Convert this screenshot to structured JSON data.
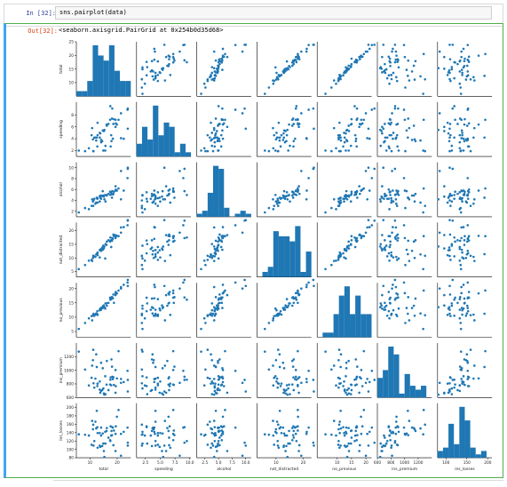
{
  "cell_in": {
    "prompt": "In [32]:",
    "code": "sns.pairplot(data)"
  },
  "cell_out": {
    "prompt": "Out[32]:",
    "repr": "<seaborn.axisgrid.PairGrid at 0x254b0d35d68>"
  },
  "colors": {
    "marker": "#1f77b4",
    "in_prompt": "#303f9f",
    "out_prompt": "#d84315",
    "cell_border": "#4fae4f",
    "selection_bar": "#42a5f5"
  },
  "chart_data": {
    "type": "scatter",
    "variables": [
      "total",
      "speeding",
      "alcohol",
      "not_distracted",
      "no_previous",
      "ins_premium",
      "ins_losses"
    ],
    "ranges": {
      "total": [
        5,
        25
      ],
      "speeding": [
        1.0,
        10.2
      ],
      "alcohol": [
        1.0,
        11.0
      ],
      "not_distracted": [
        3,
        23
      ],
      "no_previous": [
        3,
        22
      ],
      "ins_premium": [
        600,
        1400
      ],
      "ins_losses": [
        80,
        210
      ]
    },
    "diag_ranges": {
      "total": [
        5,
        25
      ],
      "speeding": [
        1.0,
        10.2
      ],
      "alcohol": [
        1.0,
        11.0
      ],
      "not_distracted": [
        3,
        23
      ],
      "no_previous": [
        3,
        22
      ],
      "ins_premium": [
        600,
        1400
      ],
      "ins_losses": [
        80,
        210
      ]
    },
    "ticks": {
      "total": [
        5,
        10,
        15,
        20,
        25
      ],
      "speeding": [
        2,
        4,
        6,
        8,
        10
      ],
      "alcohol": [
        2,
        4,
        6,
        8,
        10
      ],
      "not_distracted": [
        5,
        10,
        15,
        20
      ],
      "no_previous": [
        5,
        10,
        15,
        20
      ],
      "ins_premium": [
        600,
        800,
        1000,
        1200
      ],
      "ins_losses": [
        80,
        100,
        120,
        140,
        160,
        180,
        200
      ]
    },
    "x_tick_labels": {
      "total": [
        "10",
        "20"
      ],
      "speeding": [
        "2.5",
        "5.0",
        "7.5",
        "10.0"
      ],
      "alcohol": [
        "2.5",
        "5.0",
        "7.5",
        "10.0"
      ],
      "not_distracted": [
        "10",
        "20"
      ],
      "no_previous": [
        "10",
        "15",
        "20"
      ],
      "ins_premium": [
        "600",
        "800",
        "1000",
        "1200"
      ],
      "ins_losses": [
        "100",
        "150",
        "200"
      ]
    },
    "x_tick_values": {
      "total": [
        10,
        20
      ],
      "speeding": [
        2.5,
        5.0,
        7.5,
        10.0
      ],
      "alcohol": [
        2.5,
        5.0,
        7.5,
        10.0
      ],
      "not_distracted": [
        10,
        20
      ],
      "no_previous": [
        10,
        15,
        20
      ],
      "ins_premium": [
        600,
        800,
        1000,
        1200
      ],
      "ins_losses": [
        100,
        150,
        200
      ]
    },
    "y_tick_labels": {
      "total": [
        "10",
        "15",
        "20",
        "25"
      ],
      "speeding": [
        "2",
        "4",
        "6",
        "8"
      ],
      "alcohol": [
        "2",
        "4",
        "6",
        "8",
        "10"
      ],
      "not_distracted": [
        "5",
        "10",
        "15",
        "20"
      ],
      "no_previous": [
        "5",
        "10",
        "15",
        "20"
      ],
      "ins_premium": [
        "600",
        "800",
        "1000",
        "1200"
      ],
      "ins_losses": [
        "80",
        "100",
        "120",
        "140",
        "160",
        "180",
        "200"
      ]
    },
    "y_tick_values": {
      "total": [
        10,
        15,
        20,
        25
      ],
      "speeding": [
        2,
        4,
        6,
        8
      ],
      "alcohol": [
        2,
        4,
        6,
        8,
        10
      ],
      "not_distracted": [
        5,
        10,
        15,
        20
      ],
      "no_previous": [
        5,
        10,
        15,
        20
      ],
      "ins_premium": [
        600,
        800,
        1000,
        1200
      ],
      "ins_losses": [
        80,
        100,
        120,
        140,
        160,
        180,
        200
      ]
    },
    "records": [
      [
        18.8,
        7.3,
        5.6,
        18.0,
        15.0,
        785,
        145
      ],
      [
        18.1,
        7.4,
        4.5,
        16.3,
        17.0,
        1053,
        134
      ],
      [
        18.6,
        6.5,
        5.2,
        18.6,
        17.9,
        899,
        110
      ],
      [
        22.4,
        4.0,
        5.8,
        21.3,
        21.3,
        827,
        142
      ],
      [
        12.0,
        4.2,
        3.4,
        10.4,
        10.9,
        878,
        166
      ],
      [
        13.6,
        5.0,
        3.8,
        10.2,
        12.4,
        835,
        139
      ],
      [
        10.8,
        5.8,
        4.2,
        8.9,
        8.9,
        1068,
        168
      ],
      [
        16.2,
        6.2,
        4.9,
        16.0,
        14.0,
        1137,
        151
      ],
      [
        5.9,
        2.0,
        1.8,
        5.9,
        5.9,
        1274,
        136
      ],
      [
        17.9,
        3.6,
        5.2,
        16.5,
        16.5,
        1160,
        144
      ],
      [
        15.6,
        2.0,
        5.0,
        9.8,
        13.0,
        913,
        142
      ],
      [
        17.5,
        9.5,
        5.0,
        17.5,
        16.1,
        861,
        120
      ],
      [
        15.3,
        5.5,
        4.2,
        14.2,
        13.5,
        642,
        82
      ],
      [
        12.8,
        4.6,
        4.4,
        12.0,
        10.9,
        804,
        139
      ],
      [
        14.5,
        3.6,
        4.8,
        13.8,
        13.5,
        710,
        108
      ],
      [
        15.7,
        2.8,
        3.8,
        15.1,
        14.8,
        649,
        114
      ],
      [
        17.8,
        4.6,
        5.5,
        14.0,
        16.3,
        780,
        133
      ],
      [
        21.4,
        4.1,
        4.2,
        21.2,
        20.5,
        873,
        137
      ],
      [
        20.5,
        7.2,
        6.2,
        18.0,
        19.3,
        1281,
        194
      ],
      [
        15.1,
        5.3,
        4.7,
        13.5,
        14.1,
        661,
        96
      ],
      [
        12.5,
        4.2,
        4.5,
        11.4,
        11.2,
        1048,
        192
      ],
      [
        8.2,
        1.9,
        2.6,
        7.4,
        8.0,
        1011,
        135
      ],
      [
        14.1,
        3.8,
        4.9,
        12.6,
        13.2,
        1110,
        152
      ],
      [
        9.6,
        2.4,
        2.4,
        9.0,
        9.6,
        777,
        133
      ],
      [
        17.6,
        2.7,
        5.5,
        16.4,
        16.8,
        896,
        155
      ],
      [
        16.1,
        6.4,
        5.0,
        14.8,
        14.8,
        790,
        144
      ],
      [
        21.4,
        8.3,
        9.4,
        19.3,
        20.0,
        816,
        85
      ],
      [
        14.9,
        2.0,
        4.9,
        14.5,
        14.0,
        733,
        114
      ],
      [
        14.7,
        5.4,
        5.7,
        13.0,
        13.2,
        1030,
        138
      ],
      [
        11.6,
        4.2,
        4.3,
        10.6,
        10.5,
        746,
        120
      ],
      [
        11.2,
        1.9,
        3.0,
        10.8,
        10.7,
        1301,
        159
      ],
      [
        18.4,
        4.0,
        5.1,
        17.0,
        16.6,
        870,
        152
      ],
      [
        12.3,
        3.7,
        3.6,
        11.3,
        11.3,
        1234,
        150
      ],
      [
        16.8,
        6.5,
        5.2,
        16.5,
        15.0,
        709,
        128
      ],
      [
        23.9,
        5.7,
        10.0,
        23.9,
        20.9,
        688,
        109
      ],
      [
        14.1,
        3.4,
        4.3,
        13.3,
        12.6,
        697,
        133
      ],
      [
        19.9,
        6.4,
        5.8,
        18.1,
        18.3,
        881,
        178
      ],
      [
        12.8,
        6.7,
        3.6,
        11.0,
        10.8,
        804,
        104
      ],
      [
        18.2,
        9.1,
        5.7,
        17.3,
        16.9,
        905,
        153
      ],
      [
        11.1,
        3.9,
        3.8,
        10.0,
        10.5,
        1148,
        148
      ],
      [
        23.9,
        9.1,
        9.8,
        23.7,
        23.0,
        859,
        116
      ],
      [
        19.4,
        6.0,
        6.6,
        18.4,
        17.7,
        670,
        96
      ],
      [
        19.5,
        6.6,
        6.0,
        18.0,
        18.8,
        767,
        155
      ],
      [
        19.4,
        7.2,
        5.8,
        17.3,
        18.4,
        1004,
        137
      ],
      [
        11.3,
        1.9,
        4.0,
        10.7,
        11.2,
        809,
        109
      ],
      [
        13.6,
        4.2,
        4.8,
        12.9,
        12.6,
        716,
        109
      ],
      [
        12.7,
        2.7,
        4.3,
        11.7,
        12.1,
        768,
        153
      ],
      [
        10.6,
        4.6,
        3.0,
        9.3,
        10.4,
        890,
        111
      ],
      [
        23.8,
        8.9,
        8.1,
        22.0,
        22.1,
        992,
        152
      ],
      [
        13.8,
        4.9,
        4.5,
        12.8,
        13.0,
        670,
        106
      ],
      [
        17.4,
        7.2,
        5.6,
        16.0,
        16.8,
        791,
        122
      ]
    ],
    "hist_bins": 10
  }
}
